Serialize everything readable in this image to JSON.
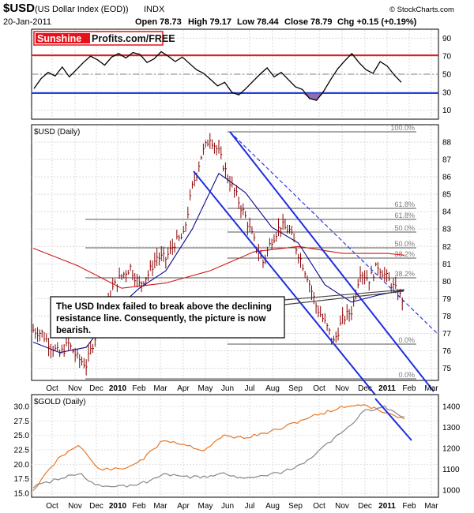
{
  "header": {
    "symbol": "$USD",
    "name": "(US Dollar Index (EOD))",
    "exchange": "INDX",
    "date": "20-Jan-2011",
    "open": "Open 78.73",
    "high": "High 79.17",
    "low": "Low 78.44",
    "close": "Close 78.79",
    "change": "Chg +0.15 (+0.19%)",
    "credit": "© StockCharts.com"
  },
  "logo": {
    "part1": "Sunshine",
    "part2": "Profits.com/FREE",
    "color_red": "#e8101a"
  },
  "annotation": {
    "line1": "The USD Index failed to break above the declining",
    "line2": "resistance line. Consequently, the picture is now",
    "line3": "bearish."
  },
  "x_ticks": [
    {
      "label": "Oct",
      "bold": false
    },
    {
      "label": "Nov",
      "bold": false
    },
    {
      "label": "Dec",
      "bold": false
    },
    {
      "label": "2010",
      "bold": true
    },
    {
      "label": "Feb",
      "bold": false
    },
    {
      "label": "Mar",
      "bold": false
    },
    {
      "label": "Apr",
      "bold": false
    },
    {
      "label": "May",
      "bold": false
    },
    {
      "label": "Jun",
      "bold": false
    },
    {
      "label": "Jul",
      "bold": false
    },
    {
      "label": "Aug",
      "bold": false
    },
    {
      "label": "Sep",
      "bold": false
    },
    {
      "label": "Oct",
      "bold": false
    },
    {
      "label": "Nov",
      "bold": false
    },
    {
      "label": "Dec",
      "bold": false
    },
    {
      "label": "2011",
      "bold": true
    },
    {
      "label": "Feb",
      "bold": false
    },
    {
      "label": "Mar",
      "bold": false
    }
  ],
  "chart_data": [
    {
      "type": "line",
      "panel": "rsi",
      "ylim": [
        0,
        100
      ],
      "y_ticks": [
        10,
        30,
        50,
        70,
        90
      ],
      "reference_lines": [
        {
          "value": 71,
          "color": "#e02020"
        },
        {
          "value": 50,
          "color": "#808080",
          "style": "dash-dot"
        },
        {
          "value": 29,
          "color": "#2040e0"
        }
      ],
      "series": [
        {
          "color": "#000000",
          "values": [
            [
              0,
              34
            ],
            [
              1,
              45
            ],
            [
              2,
              52
            ],
            [
              3,
              48
            ],
            [
              4,
              58
            ],
            [
              5,
              47
            ],
            [
              6,
              55
            ],
            [
              7,
              63
            ],
            [
              8,
              70
            ],
            [
              9,
              66
            ],
            [
              10,
              60
            ],
            [
              11,
              69
            ],
            [
              12,
              73
            ],
            [
              13,
              68
            ],
            [
              14,
              74
            ],
            [
              15,
              72
            ],
            [
              16,
              63
            ],
            [
              17,
              67
            ],
            [
              18,
              75
            ],
            [
              19,
              70
            ],
            [
              20,
              64
            ],
            [
              21,
              69
            ],
            [
              22,
              62
            ],
            [
              23,
              55
            ],
            [
              24,
              51
            ],
            [
              25,
              44
            ],
            [
              26,
              37
            ],
            [
              27,
              41
            ],
            [
              28,
              30
            ],
            [
              29,
              27
            ],
            [
              30,
              34
            ],
            [
              31,
              42
            ],
            [
              32,
              50
            ],
            [
              33,
              57
            ],
            [
              34,
              47
            ],
            [
              35,
              52
            ],
            [
              36,
              44
            ],
            [
              37,
              36
            ],
            [
              38,
              33
            ],
            [
              39,
              23
            ],
            [
              40,
              21
            ],
            [
              41,
              31
            ],
            [
              42,
              44
            ],
            [
              43,
              56
            ],
            [
              44,
              65
            ],
            [
              45,
              73
            ],
            [
              46,
              63
            ],
            [
              47,
              55
            ],
            [
              48,
              51
            ],
            [
              49,
              64
            ],
            [
              50,
              59
            ],
            [
              51,
              49
            ],
            [
              52,
              41
            ]
          ]
        }
      ]
    },
    {
      "type": "line",
      "panel": "usd-daily",
      "title": "$USD (Daily)",
      "ylim": [
        74.3,
        89.0
      ],
      "y_ticks": [
        75,
        76,
        77,
        78,
        79,
        80,
        81,
        82,
        83,
        84,
        85,
        86,
        87,
        88
      ],
      "series": [
        {
          "color": "#8b0000",
          "style": "ohlc",
          "values": [
            [
              0,
              77.2
            ],
            [
              1,
              77.0
            ],
            [
              2,
              76.3
            ],
            [
              3,
              75.8
            ],
            [
              4,
              76.4
            ],
            [
              5,
              75.6
            ],
            [
              6,
              75.2
            ],
            [
              7,
              76.8
            ],
            [
              8,
              78.2
            ],
            [
              9,
              79.6
            ],
            [
              10,
              80.3
            ],
            [
              11,
              80.8
            ],
            [
              12,
              79.8
            ],
            [
              13,
              80.4
            ],
            [
              14,
              81.4
            ],
            [
              15,
              81.3
            ],
            [
              16,
              82.2
            ],
            [
              17,
              82.6
            ],
            [
              18,
              85.4
            ],
            [
              19,
              87.2
            ],
            [
              20,
              88.3
            ],
            [
              21,
              87.4
            ],
            [
              22,
              86.0
            ],
            [
              23,
              84.9
            ],
            [
              24,
              83.7
            ],
            [
              25,
              82.3
            ],
            [
              26,
              81.1
            ],
            [
              27,
              82.4
            ],
            [
              28,
              83.2
            ],
            [
              29,
              82.9
            ],
            [
              30,
              81.6
            ],
            [
              31,
              80.3
            ],
            [
              32,
              78.6
            ],
            [
              33,
              77.6
            ],
            [
              34,
              76.5
            ],
            [
              35,
              77.8
            ],
            [
              36,
              78.3
            ],
            [
              37,
              80.6
            ],
            [
              38,
              80.1
            ],
            [
              39,
              80.9
            ],
            [
              40,
              80.2
            ],
            [
              41,
              79.5
            ],
            [
              42,
              78.8
            ]
          ]
        },
        {
          "name": "MA50",
          "color": "#0a0a8c",
          "values": [
            [
              0,
              76.5
            ],
            [
              3,
              75.9
            ],
            [
              6,
              76.2
            ],
            [
              9,
              78.2
            ],
            [
              12,
              79.6
            ],
            [
              15,
              80.6
            ],
            [
              18,
              83.0
            ],
            [
              21,
              86.2
            ],
            [
              24,
              85.1
            ],
            [
              27,
              83.1
            ],
            [
              30,
              82.2
            ],
            [
              33,
              79.8
            ],
            [
              36,
              78.8
            ],
            [
              39,
              79.2
            ],
            [
              42,
              79.5
            ]
          ]
        },
        {
          "name": "MA200",
          "color": "#d01818",
          "values": [
            [
              0,
              81.9
            ],
            [
              5,
              80.9
            ],
            [
              10,
              79.6
            ],
            [
              15,
              79.9
            ],
            [
              20,
              80.6
            ],
            [
              25,
              81.7
            ],
            [
              30,
              82.0
            ],
            [
              35,
              81.6
            ],
            [
              40,
              81.6
            ],
            [
              42,
              81.5
            ]
          ]
        }
      ],
      "fibonacci_labels": [
        "100.0%",
        "61.8%",
        "61.8%",
        "50.0%",
        "50.0%",
        "38.2%",
        "38.2%",
        "0.0%",
        "0.0%"
      ]
    },
    {
      "type": "line",
      "panel": "gold-daily",
      "title": "$GOLD (Daily)",
      "left_ticks": [
        15.0,
        17.5,
        20.0,
        22.5,
        25.0,
        27.5,
        30.0
      ],
      "right_ticks": [
        1000,
        1100,
        1200,
        1300,
        1400
      ],
      "series": [
        {
          "name": "Gold",
          "color": "#e87722",
          "values": [
            [
              0,
              1000
            ],
            [
              5,
              1150
            ],
            [
              9,
              1220
            ],
            [
              13,
              1100
            ],
            [
              18,
              1100
            ],
            [
              22,
              1150
            ],
            [
              26,
              1240
            ],
            [
              30,
              1220
            ],
            [
              34,
              1190
            ],
            [
              38,
              1260
            ],
            [
              42,
              1250
            ],
            [
              46,
              1270
            ],
            [
              50,
              1300
            ],
            [
              54,
              1340
            ],
            [
              58,
              1370
            ],
            [
              62,
              1400
            ],
            [
              66,
              1410
            ],
            [
              70,
              1370
            ],
            [
              74,
              1340
            ]
          ]
        },
        {
          "name": "Silver",
          "color": "#888888",
          "values": [
            [
              0,
              16.1
            ],
            [
              5,
              17.5
            ],
            [
              9,
              18.5
            ],
            [
              13,
              16.3
            ],
            [
              18,
              16.2
            ],
            [
              22,
              16.8
            ],
            [
              26,
              18.3
            ],
            [
              30,
              17.8
            ],
            [
              34,
              17.8
            ],
            [
              38,
              18.5
            ],
            [
              42,
              17.5
            ],
            [
              46,
              17.9
            ],
            [
              50,
              18.8
            ],
            [
              54,
              20.1
            ],
            [
              58,
              23.1
            ],
            [
              62,
              25.8
            ],
            [
              66,
              29.2
            ],
            [
              70,
              29.9
            ],
            [
              74,
              28.2
            ]
          ]
        }
      ]
    }
  ]
}
